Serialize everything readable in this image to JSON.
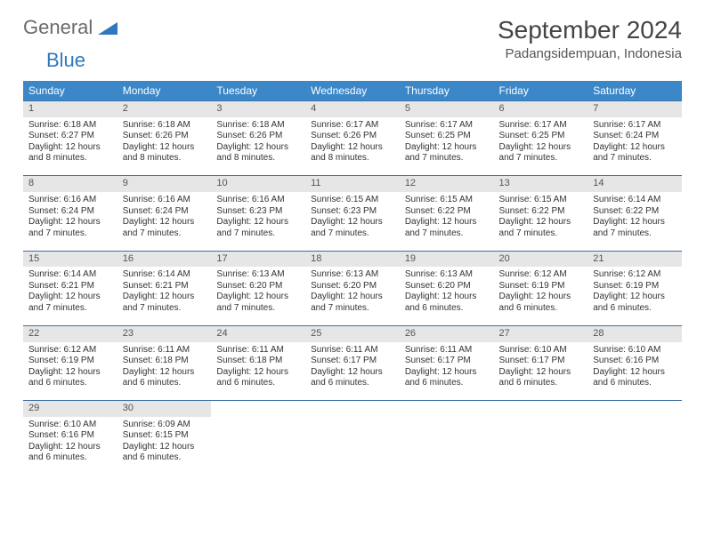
{
  "logo": {
    "word1": "General",
    "word2": "Blue"
  },
  "header": {
    "month": "September 2024",
    "location": "Padangsidempuan, Indonesia"
  },
  "colors": {
    "header_bg": "#3b87c8",
    "header_text": "#ffffff",
    "daynum_bg": "#e6e6e6",
    "border_top": "#3b6fa3",
    "logo_gray": "#6a6a6a",
    "logo_blue": "#2f78bd"
  },
  "weekdays": [
    "Sunday",
    "Monday",
    "Tuesday",
    "Wednesday",
    "Thursday",
    "Friday",
    "Saturday"
  ],
  "weeks": [
    [
      {
        "n": "1",
        "sr": "Sunrise: 6:18 AM",
        "ss": "Sunset: 6:27 PM",
        "d1": "Daylight: 12 hours",
        "d2": "and 8 minutes."
      },
      {
        "n": "2",
        "sr": "Sunrise: 6:18 AM",
        "ss": "Sunset: 6:26 PM",
        "d1": "Daylight: 12 hours",
        "d2": "and 8 minutes."
      },
      {
        "n": "3",
        "sr": "Sunrise: 6:18 AM",
        "ss": "Sunset: 6:26 PM",
        "d1": "Daylight: 12 hours",
        "d2": "and 8 minutes."
      },
      {
        "n": "4",
        "sr": "Sunrise: 6:17 AM",
        "ss": "Sunset: 6:26 PM",
        "d1": "Daylight: 12 hours",
        "d2": "and 8 minutes."
      },
      {
        "n": "5",
        "sr": "Sunrise: 6:17 AM",
        "ss": "Sunset: 6:25 PM",
        "d1": "Daylight: 12 hours",
        "d2": "and 7 minutes."
      },
      {
        "n": "6",
        "sr": "Sunrise: 6:17 AM",
        "ss": "Sunset: 6:25 PM",
        "d1": "Daylight: 12 hours",
        "d2": "and 7 minutes."
      },
      {
        "n": "7",
        "sr": "Sunrise: 6:17 AM",
        "ss": "Sunset: 6:24 PM",
        "d1": "Daylight: 12 hours",
        "d2": "and 7 minutes."
      }
    ],
    [
      {
        "n": "8",
        "sr": "Sunrise: 6:16 AM",
        "ss": "Sunset: 6:24 PM",
        "d1": "Daylight: 12 hours",
        "d2": "and 7 minutes."
      },
      {
        "n": "9",
        "sr": "Sunrise: 6:16 AM",
        "ss": "Sunset: 6:24 PM",
        "d1": "Daylight: 12 hours",
        "d2": "and 7 minutes."
      },
      {
        "n": "10",
        "sr": "Sunrise: 6:16 AM",
        "ss": "Sunset: 6:23 PM",
        "d1": "Daylight: 12 hours",
        "d2": "and 7 minutes."
      },
      {
        "n": "11",
        "sr": "Sunrise: 6:15 AM",
        "ss": "Sunset: 6:23 PM",
        "d1": "Daylight: 12 hours",
        "d2": "and 7 minutes."
      },
      {
        "n": "12",
        "sr": "Sunrise: 6:15 AM",
        "ss": "Sunset: 6:22 PM",
        "d1": "Daylight: 12 hours",
        "d2": "and 7 minutes."
      },
      {
        "n": "13",
        "sr": "Sunrise: 6:15 AM",
        "ss": "Sunset: 6:22 PM",
        "d1": "Daylight: 12 hours",
        "d2": "and 7 minutes."
      },
      {
        "n": "14",
        "sr": "Sunrise: 6:14 AM",
        "ss": "Sunset: 6:22 PM",
        "d1": "Daylight: 12 hours",
        "d2": "and 7 minutes."
      }
    ],
    [
      {
        "n": "15",
        "sr": "Sunrise: 6:14 AM",
        "ss": "Sunset: 6:21 PM",
        "d1": "Daylight: 12 hours",
        "d2": "and 7 minutes."
      },
      {
        "n": "16",
        "sr": "Sunrise: 6:14 AM",
        "ss": "Sunset: 6:21 PM",
        "d1": "Daylight: 12 hours",
        "d2": "and 7 minutes."
      },
      {
        "n": "17",
        "sr": "Sunrise: 6:13 AM",
        "ss": "Sunset: 6:20 PM",
        "d1": "Daylight: 12 hours",
        "d2": "and 7 minutes."
      },
      {
        "n": "18",
        "sr": "Sunrise: 6:13 AM",
        "ss": "Sunset: 6:20 PM",
        "d1": "Daylight: 12 hours",
        "d2": "and 7 minutes."
      },
      {
        "n": "19",
        "sr": "Sunrise: 6:13 AM",
        "ss": "Sunset: 6:20 PM",
        "d1": "Daylight: 12 hours",
        "d2": "and 6 minutes."
      },
      {
        "n": "20",
        "sr": "Sunrise: 6:12 AM",
        "ss": "Sunset: 6:19 PM",
        "d1": "Daylight: 12 hours",
        "d2": "and 6 minutes."
      },
      {
        "n": "21",
        "sr": "Sunrise: 6:12 AM",
        "ss": "Sunset: 6:19 PM",
        "d1": "Daylight: 12 hours",
        "d2": "and 6 minutes."
      }
    ],
    [
      {
        "n": "22",
        "sr": "Sunrise: 6:12 AM",
        "ss": "Sunset: 6:19 PM",
        "d1": "Daylight: 12 hours",
        "d2": "and 6 minutes."
      },
      {
        "n": "23",
        "sr": "Sunrise: 6:11 AM",
        "ss": "Sunset: 6:18 PM",
        "d1": "Daylight: 12 hours",
        "d2": "and 6 minutes."
      },
      {
        "n": "24",
        "sr": "Sunrise: 6:11 AM",
        "ss": "Sunset: 6:18 PM",
        "d1": "Daylight: 12 hours",
        "d2": "and 6 minutes."
      },
      {
        "n": "25",
        "sr": "Sunrise: 6:11 AM",
        "ss": "Sunset: 6:17 PM",
        "d1": "Daylight: 12 hours",
        "d2": "and 6 minutes."
      },
      {
        "n": "26",
        "sr": "Sunrise: 6:11 AM",
        "ss": "Sunset: 6:17 PM",
        "d1": "Daylight: 12 hours",
        "d2": "and 6 minutes."
      },
      {
        "n": "27",
        "sr": "Sunrise: 6:10 AM",
        "ss": "Sunset: 6:17 PM",
        "d1": "Daylight: 12 hours",
        "d2": "and 6 minutes."
      },
      {
        "n": "28",
        "sr": "Sunrise: 6:10 AM",
        "ss": "Sunset: 6:16 PM",
        "d1": "Daylight: 12 hours",
        "d2": "and 6 minutes."
      }
    ],
    [
      {
        "n": "29",
        "sr": "Sunrise: 6:10 AM",
        "ss": "Sunset: 6:16 PM",
        "d1": "Daylight: 12 hours",
        "d2": "and 6 minutes."
      },
      {
        "n": "30",
        "sr": "Sunrise: 6:09 AM",
        "ss": "Sunset: 6:15 PM",
        "d1": "Daylight: 12 hours",
        "d2": "and 6 minutes."
      },
      null,
      null,
      null,
      null,
      null
    ]
  ]
}
